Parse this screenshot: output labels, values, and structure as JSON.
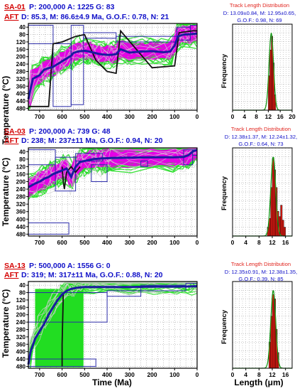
{
  "chart_data": [
    {
      "type": "line",
      "sample": "SA-01",
      "header_line1": "P: 200,000 A: 1225 G: 83",
      "header_line2_label": "AFT",
      "header_line2": "D: 85.3, M: 86.6±4.9 Ma, G.O.F.: 0.78, N: 21",
      "x_ticks": [
        700,
        600,
        500,
        400,
        300,
        200,
        100,
        0
      ],
      "y_ticks": [
        40,
        80,
        120,
        160,
        200,
        240,
        280,
        320,
        360,
        400,
        440,
        480
      ],
      "xlim": [
        750,
        0
      ],
      "ylim": [
        20,
        490
      ],
      "ylabel": "Temperature (°C)",
      "best_path": {
        "x": [
          750,
          730,
          700,
          690,
          680,
          660,
          640,
          620,
          600,
          580,
          560,
          550,
          530,
          515,
          500,
          480,
          460,
          440,
          420,
          400,
          380,
          360,
          340,
          300,
          250,
          200,
          150,
          120,
          100,
          85,
          60,
          30,
          0
        ],
        "y": [
          430,
          320,
          300,
          285,
          270,
          262,
          255,
          240,
          225,
          210,
          195,
          180,
          172,
          170,
          168,
          172,
          178,
          184,
          188,
          190,
          190,
          186,
          160,
          178,
          172,
          170,
          176,
          172,
          140,
          90,
          80,
          78,
          75
        ]
      },
      "weighted_path": {
        "x": [
          750,
          660,
          640,
          600,
          540,
          500,
          450,
          400,
          360,
          340,
          200,
          100,
          80,
          20,
          0
        ],
        "y": [
          470,
          470,
          130,
          120,
          90,
          80,
          220,
          280,
          290,
          60,
          260,
          250,
          70,
          60,
          60
        ]
      },
      "boxes": [
        {
          "x": [
            750,
            640
          ],
          "y": [
            30,
            130
          ]
        },
        {
          "x": [
            640,
            560
          ],
          "y": [
            130,
            470
          ]
        },
        {
          "x": [
            560,
            505
          ],
          "y": [
            30,
            460
          ]
        },
        {
          "x": [
            505,
            360
          ],
          "y": [
            70,
            100
          ]
        },
        {
          "x": [
            360,
            90
          ],
          "y": [
            90,
            120
          ]
        },
        {
          "x": [
            90,
            30
          ],
          "y": [
            40,
            110
          ]
        },
        {
          "x": [
            30,
            0
          ],
          "y": [
            30,
            60
          ]
        }
      ],
      "hist": {
        "title": "Track Length Distribution",
        "stats_line1": "D: 13.09±0.84, M: 12.95±0.65,",
        "stats_line2": "G.O.F.: 0.98, N: 69",
        "x_ticks": [
          0,
          4,
          8,
          12,
          16,
          20
        ],
        "xlim": [
          0,
          20
        ],
        "ylabel": "Frequency",
        "bars": [
          {
            "x": 12,
            "h": 0.4
          },
          {
            "x": 12.5,
            "h": 0.7
          },
          {
            "x": 13,
            "h": 0.86
          },
          {
            "x": 13.5,
            "h": 0.55
          },
          {
            "x": 14,
            "h": 0.18
          }
        ],
        "curve_peak": 13
      }
    },
    {
      "type": "line",
      "sample": "SA-03",
      "header_line1": "P: 200,000 A: 739 G: 48",
      "header_line2_label": "AFT",
      "header_line2": "D: 238; M: 237±11 Ma, G.O.F.: 0.94, N: 20",
      "x_ticks": [
        700,
        600,
        500,
        400,
        300,
        200,
        100,
        0
      ],
      "y_ticks": [
        40,
        80,
        120,
        160,
        200,
        240,
        280,
        320,
        360,
        400,
        440,
        480
      ],
      "xlim": [
        750,
        0
      ],
      "ylim": [
        20,
        490
      ],
      "ylabel": "Temperature (°C)",
      "best_path": {
        "x": [
          750,
          720,
          700,
          680,
          660,
          640,
          620,
          600,
          580,
          560,
          540,
          520,
          500,
          480,
          460,
          440,
          420,
          400,
          380,
          300,
          200,
          100,
          60,
          40,
          20,
          0
        ],
        "y": [
          230,
          210,
          200,
          185,
          175,
          160,
          150,
          140,
          130,
          175,
          120,
          95,
          90,
          85,
          80,
          78,
          76,
          75,
          74,
          72,
          70,
          70,
          68,
          60,
          40,
          30
        ]
      },
      "weighted_path": {
        "x": [
          600,
          595,
          590,
          580,
          560,
          540,
          520
        ],
        "y": [
          120,
          200,
          240,
          150,
          120,
          150,
          120
        ]
      },
      "boxes": [
        {
          "x": [
            750,
            630
          ],
          "y": [
            30,
            110
          ]
        },
        {
          "x": [
            750,
            570
          ],
          "y": [
            420,
            480
          ]
        },
        {
          "x": [
            630,
            540
          ],
          "y": [
            70,
            250
          ]
        },
        {
          "x": [
            540,
            420
          ],
          "y": [
            50,
            90
          ]
        },
        {
          "x": [
            470,
            400
          ],
          "y": [
            110,
            200
          ]
        },
        {
          "x": [
            250,
            220
          ],
          "y": [
            90,
            120
          ]
        },
        {
          "x": [
            60,
            20
          ],
          "y": [
            30,
            110
          ]
        },
        {
          "x": [
            20,
            0
          ],
          "y": [
            30,
            60
          ]
        }
      ],
      "hist": {
        "title": "Track Length Distribution",
        "stats_line1": "D: 12.38±1.37, M: 12.24±1.32,",
        "stats_line2": "G.O.F.: 0.64, N: 73",
        "x_ticks": [
          0,
          4,
          8,
          12,
          16
        ],
        "xlim": [
          0,
          18
        ],
        "ylabel": "Frequency",
        "bars": [
          {
            "x": 10.5,
            "h": 0.1
          },
          {
            "x": 11,
            "h": 0.2
          },
          {
            "x": 11.5,
            "h": 0.55
          },
          {
            "x": 12,
            "h": 0.88
          },
          {
            "x": 12.5,
            "h": 0.75
          },
          {
            "x": 13,
            "h": 0.55
          },
          {
            "x": 13.5,
            "h": 0.28
          },
          {
            "x": 14,
            "h": 0.22
          },
          {
            "x": 14.5,
            "h": 0.35
          },
          {
            "x": 15,
            "h": 0.18
          },
          {
            "x": 15.5,
            "h": 0.1
          }
        ],
        "curve_peak": 12.3
      }
    },
    {
      "type": "line",
      "sample": "SA-13",
      "header_line1": "P: 500,000 A: 1556 G: 0",
      "header_line2_label": "AFT",
      "header_line2": "D: 319; M: 317±11 Ma, G.O.F.: 0.88, N: 20",
      "x_ticks": [
        700,
        600,
        500,
        400,
        300,
        200,
        100,
        0
      ],
      "y_ticks": [
        40,
        80,
        120,
        160,
        200,
        240,
        280,
        320,
        360,
        400,
        440,
        480
      ],
      "xlim": [
        750,
        0
      ],
      "ylim": [
        20,
        490
      ],
      "ylabel": "Temperature (°C)",
      "xlabel": "Time (Ma)",
      "best_path": {
        "x": [
          750,
          740,
          720,
          700,
          680,
          660,
          640,
          620,
          600,
          580,
          560,
          540,
          520,
          500,
          460,
          400,
          300,
          200,
          100,
          40,
          20,
          0
        ],
        "y": [
          470,
          400,
          330,
          290,
          250,
          200,
          160,
          120,
          90,
          70,
          60,
          55,
          52,
          50,
          50,
          50,
          50,
          48,
          48,
          47,
          46,
          45
        ]
      },
      "weighted_path": {
        "x": [
          600,
          600,
          598,
          596,
          595
        ],
        "y": [
          480,
          360,
          260,
          150,
          90
        ]
      },
      "boxes": [
        {
          "x": [
            750,
            400
          ],
          "y": [
            80,
            240
          ]
        },
        {
          "x": [
            750,
            450
          ],
          "y": [
            440,
            480
          ]
        },
        {
          "x": [
            400,
            250
          ],
          "y": [
            70,
            100
          ]
        },
        {
          "x": [
            250,
            50
          ],
          "y": [
            40,
            70
          ]
        },
        {
          "x": [
            50,
            0
          ],
          "y": [
            30,
            50
          ]
        }
      ],
      "hist": {
        "title": "Track Length Distribution",
        "stats_line1": "D: 12.35±0.91, M: 12.38±1.35,",
        "stats_line2": "G.O.F.: 0.39, N: 85",
        "x_ticks": [
          0,
          4,
          8,
          12,
          16
        ],
        "xlim": [
          0,
          18
        ],
        "ylabel": "Frequency",
        "xlabel": "Length (μm)",
        "bars": [
          {
            "x": 11,
            "h": 0.3
          },
          {
            "x": 11.5,
            "h": 0.6
          },
          {
            "x": 12,
            "h": 0.85
          },
          {
            "x": 12.5,
            "h": 0.8
          },
          {
            "x": 13,
            "h": 0.45
          },
          {
            "x": 13.5,
            "h": 0.18
          }
        ],
        "curve_peak": 12.3
      }
    }
  ],
  "colors": {
    "envelope_good": "#e600e6",
    "envelope_acceptable": "#22dd22",
    "best_path": "#1a1aa0",
    "weighted_path": "#111111",
    "constraint_box": "#2a2aa8",
    "grid": "#9a9a9a",
    "hist_bar": "#e21b12",
    "hist_curve": "#1a9a1a"
  }
}
